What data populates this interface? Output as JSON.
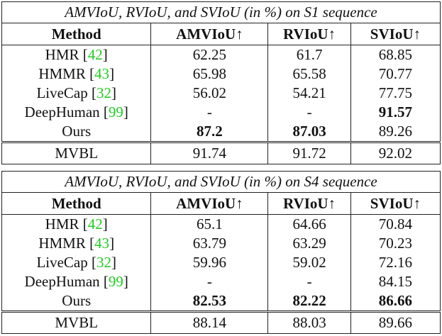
{
  "tables": [
    {
      "title": "AMVIoU, RVIoU, and SVIoU (in %) on S1 sequence",
      "headers": [
        "Method",
        "AMVIoU↑",
        "RVIoU↑",
        "SVIoU↑"
      ],
      "rows": [
        {
          "method": "HMR",
          "cite": "42",
          "values": [
            "62.25",
            "61.7",
            "68.85"
          ],
          "bold": [
            false,
            false,
            false
          ]
        },
        {
          "method": "HMMR",
          "cite": "43",
          "values": [
            "65.98",
            "65.58",
            "70.77"
          ],
          "bold": [
            false,
            false,
            false
          ]
        },
        {
          "method": "LiveCap",
          "cite": "32",
          "values": [
            "56.02",
            "54.21",
            "77.75"
          ],
          "bold": [
            false,
            false,
            false
          ]
        },
        {
          "method": "DeepHuman",
          "cite": "99",
          "values": [
            "-",
            "-",
            "91.57"
          ],
          "bold": [
            false,
            false,
            true
          ]
        },
        {
          "method": "Ours",
          "cite": null,
          "values": [
            "87.2",
            "87.03",
            "89.26"
          ],
          "bold": [
            true,
            true,
            false
          ]
        }
      ],
      "reference": {
        "method": "MVBL",
        "values": [
          "91.74",
          "91.72",
          "92.02"
        ]
      }
    },
    {
      "title": "AMVIoU, RVIoU, and SVIoU (in %) on S4 sequence",
      "headers": [
        "Method",
        "AMVIoU↑",
        "RVIoU↑",
        "SVIoU↑"
      ],
      "rows": [
        {
          "method": "HMR",
          "cite": "42",
          "values": [
            "65.1",
            "64.66",
            "70.84"
          ],
          "bold": [
            false,
            false,
            false
          ]
        },
        {
          "method": "HMMR",
          "cite": "43",
          "values": [
            "63.79",
            "63.29",
            "70.23"
          ],
          "bold": [
            false,
            false,
            false
          ]
        },
        {
          "method": "LiveCap",
          "cite": "32",
          "values": [
            "59.96",
            "59.02",
            "72.16"
          ],
          "bold": [
            false,
            false,
            false
          ]
        },
        {
          "method": "DeepHuman",
          "cite": "99",
          "values": [
            "-",
            "-",
            "84.15"
          ],
          "bold": [
            false,
            false,
            false
          ]
        },
        {
          "method": "Ours",
          "cite": null,
          "values": [
            "82.53",
            "82.22",
            "86.66"
          ],
          "bold": [
            true,
            true,
            true
          ]
        }
      ],
      "reference": {
        "method": "MVBL",
        "values": [
          "88.14",
          "88.03",
          "89.66"
        ]
      }
    }
  ],
  "colors": {
    "citation": "#22cc22",
    "text": "#111111"
  }
}
